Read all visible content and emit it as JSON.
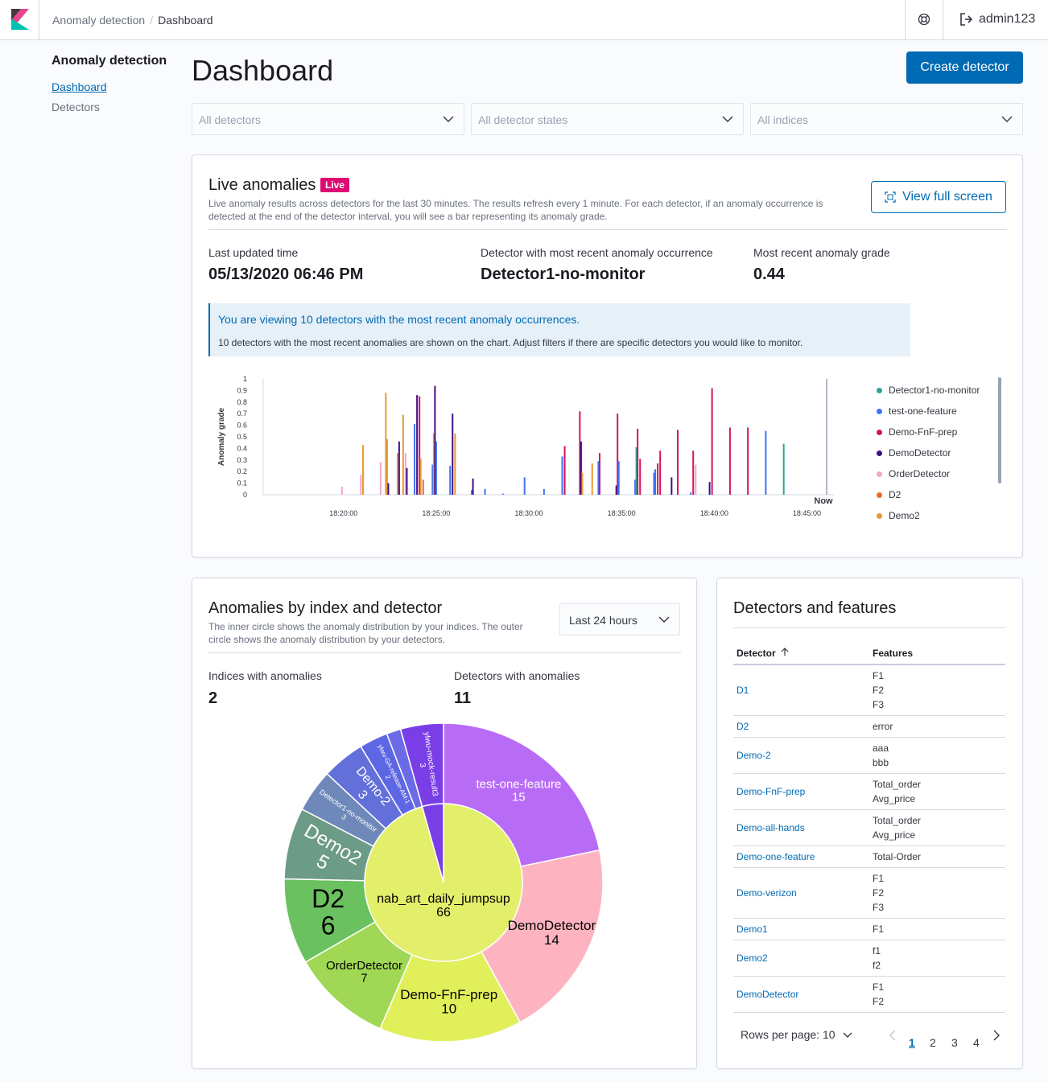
{
  "header": {
    "breadcrumb_app": "Anomaly detection",
    "breadcrumb_current": "Dashboard",
    "user": "admin123"
  },
  "sidebar": {
    "title": "Anomaly detection",
    "items": [
      {
        "label": "Dashboard",
        "active": true
      },
      {
        "label": "Detectors",
        "active": false
      }
    ]
  },
  "page": {
    "title": "Dashboard",
    "create_button": "Create detector"
  },
  "filters": {
    "detectors": "All detectors",
    "states": "All detector states",
    "indices": "All indices"
  },
  "live": {
    "title": "Live anomalies",
    "badge": "Live",
    "description": "Live anomaly results across detectors for the last 30 minutes. The results refresh every 1 minute. For each detector, if an anomaly occurrence is detected at the end of the detector interval, you will see a bar representing its anomaly grade.",
    "fullscreen_button": "View full screen",
    "last_updated_label": "Last updated time",
    "last_updated_value": "05/13/2020 06:46 PM",
    "recent_detector_label": "Detector with most recent anomaly occurrence",
    "recent_detector_value": "Detector1-no-monitor",
    "recent_grade_label": "Most recent anomaly grade",
    "recent_grade_value": "0.44",
    "callout_title": "You are viewing 10 detectors with the most recent anomaly occurrences.",
    "callout_text": "10 detectors with the most recent anomalies are shown on the chart. Adjust filters if there are specific detectors you would like to monitor.",
    "legend": [
      {
        "name": "Detector1-no-monitor",
        "color": "#2ea597"
      },
      {
        "name": "test-one-feature",
        "color": "#3f72f5"
      },
      {
        "name": "Demo-FnF-prep",
        "color": "#d4135f"
      },
      {
        "name": "DemoDetector",
        "color": "#3e0f88"
      },
      {
        "name": "OrderDetector",
        "color": "#f4a6c8"
      },
      {
        "name": "D2",
        "color": "#f06a24"
      },
      {
        "name": "Demo2",
        "color": "#e79a34"
      }
    ]
  },
  "chart_data": [
    {
      "type": "bar",
      "ylabel": "Anomaly grade",
      "ylim": [
        0,
        1
      ],
      "y_ticks": [
        "0",
        "0.1",
        "0.2",
        "0.3",
        "0.4",
        "0.5",
        "0.6",
        "0.7",
        "0.8",
        "0.9",
        "1"
      ],
      "x_ticks": [
        "18:20:00",
        "18:25:00",
        "18:30:00",
        "18:35:00",
        "18:40:00",
        "18:45:00"
      ],
      "now_label": "Now",
      "bars": [
        {
          "t": "18:19:55",
          "series": "OrderDetector",
          "value": 0.07
        },
        {
          "t": "18:20:56",
          "series": "OrderDetector",
          "value": 0.17
        },
        {
          "t": "18:21:03",
          "series": "Demo2",
          "value": 0.43
        },
        {
          "t": "18:22:00",
          "series": "OrderDetector",
          "value": 0.28
        },
        {
          "t": "18:22:17",
          "series": "Demo2",
          "value": 0.88
        },
        {
          "t": "18:22:21",
          "series": "Demo2",
          "value": 0.48
        },
        {
          "t": "18:22:25",
          "series": "DemoDetector",
          "value": 0.1
        },
        {
          "t": "18:22:55",
          "series": "Demo2",
          "value": 0.36
        },
        {
          "t": "18:23:00",
          "series": "DemoDetector",
          "value": 0.46
        },
        {
          "t": "18:23:13",
          "series": "Demo2",
          "value": 0.69
        },
        {
          "t": "18:23:21",
          "series": "OrderDetector",
          "value": 0.36
        },
        {
          "t": "18:23:25",
          "series": "DemoDetector",
          "value": 0.23
        },
        {
          "t": "18:23:50",
          "series": "test-one-feature",
          "value": 0.61
        },
        {
          "t": "18:23:58",
          "series": "DemoDetector",
          "value": 0.86
        },
        {
          "t": "18:24:06",
          "series": "Demo-FnF-prep",
          "value": 0.85
        },
        {
          "t": "18:24:10",
          "series": "Demo2",
          "value": 0.31
        },
        {
          "t": "18:24:18",
          "series": "D2",
          "value": 0.13
        },
        {
          "t": "18:24:48",
          "series": "test-one-feature",
          "value": 0.26
        },
        {
          "t": "18:24:52",
          "series": "Demo2",
          "value": 0.53
        },
        {
          "t": "18:24:56",
          "series": "DemoDetector",
          "value": 0.94
        },
        {
          "t": "18:25:00",
          "series": "test-one-feature",
          "value": 0.46
        },
        {
          "t": "18:25:45",
          "series": "test-one-feature",
          "value": 0.25
        },
        {
          "t": "18:25:53",
          "series": "DemoDetector",
          "value": 0.7
        },
        {
          "t": "18:26:01",
          "series": "Demo2",
          "value": 0.53
        },
        {
          "t": "18:26:55",
          "series": "test-one-feature",
          "value": 0.04
        },
        {
          "t": "18:26:59",
          "series": "DemoDetector",
          "value": 0.14
        },
        {
          "t": "18:27:38",
          "series": "test-one-feature",
          "value": 0.05
        },
        {
          "t": "18:28:36",
          "series": "test-one-feature",
          "value": 0.01
        },
        {
          "t": "18:29:46",
          "series": "test-one-feature",
          "value": 0.15
        },
        {
          "t": "18:30:49",
          "series": "test-one-feature",
          "value": 0.05
        },
        {
          "t": "18:31:48",
          "series": "test-one-feature",
          "value": 0.33
        },
        {
          "t": "18:31:56",
          "series": "Demo-FnF-prep",
          "value": 0.42
        },
        {
          "t": "18:32:45",
          "series": "Demo-FnF-prep",
          "value": 0.72
        },
        {
          "t": "18:32:49",
          "series": "DemoDetector",
          "value": 0.46
        },
        {
          "t": "18:32:53",
          "series": "Demo2",
          "value": 0.19
        },
        {
          "t": "18:33:25",
          "series": "Demo2",
          "value": 0.27
        },
        {
          "t": "18:33:45",
          "series": "test-one-feature",
          "value": 0.29
        },
        {
          "t": "18:33:49",
          "series": "Demo-FnF-prep",
          "value": 0.36
        },
        {
          "t": "18:34:43",
          "series": "DemoDetector",
          "value": 0.08
        },
        {
          "t": "18:34:47",
          "series": "Demo-FnF-prep",
          "value": 0.7
        },
        {
          "t": "18:34:51",
          "series": "test-one-feature",
          "value": 0.29
        },
        {
          "t": "18:35:44",
          "series": "test-one-feature",
          "value": 0.13
        },
        {
          "t": "18:35:48",
          "series": "Detector1-no-monitor",
          "value": 0.41
        },
        {
          "t": "18:35:52",
          "series": "Demo-FnF-prep",
          "value": 0.57
        },
        {
          "t": "18:36:00",
          "series": "Demo-FnF-prep",
          "value": 0.31
        },
        {
          "t": "18:36:45",
          "series": "test-one-feature",
          "value": 0.19
        },
        {
          "t": "18:36:49",
          "series": "test-one-feature",
          "value": 0.22
        },
        {
          "t": "18:36:57",
          "series": "Demo-FnF-prep",
          "value": 0.27
        },
        {
          "t": "18:37:05",
          "series": "Demo-FnF-prep",
          "value": 0.38
        },
        {
          "t": "18:37:42",
          "series": "DemoDetector",
          "value": 0.15
        },
        {
          "t": "18:38:02",
          "series": "Demo-FnF-prep",
          "value": 0.56
        },
        {
          "t": "18:38:44",
          "series": "test-one-feature",
          "value": 0.02
        },
        {
          "t": "18:38:52",
          "series": "Demo-FnF-prep",
          "value": 0.38
        },
        {
          "t": "18:39:00",
          "series": "OrderDetector",
          "value": 0.26
        },
        {
          "t": "18:39:45",
          "series": "DemoDetector",
          "value": 0.11
        },
        {
          "t": "18:39:53",
          "series": "Demo-FnF-prep",
          "value": 0.92
        },
        {
          "t": "18:40:51",
          "series": "Demo-FnF-prep",
          "value": 0.58
        },
        {
          "t": "18:41:49",
          "series": "Demo-FnF-prep",
          "value": 0.58
        },
        {
          "t": "18:42:47",
          "series": "test-one-feature",
          "value": 0.55
        },
        {
          "t": "18:43:45",
          "series": "Detector1-no-monitor",
          "value": 0.44
        }
      ]
    },
    {
      "type": "pie",
      "subtype": "sunburst",
      "inner": [
        {
          "label": "nab_art_daily_jumpsup",
          "value": 66,
          "color": "#e3ee6b"
        },
        {
          "label": "ylwu-mock-result3",
          "value": 3,
          "color": "#7a3ee6"
        }
      ],
      "outer": [
        {
          "label": "test-one-feature",
          "value": 15,
          "color": "#b86cf5"
        },
        {
          "label": "DemoDetector",
          "value": 14,
          "color": "#fdb4c0"
        },
        {
          "label": "Demo-FnF-prep",
          "value": 10,
          "color": "#e1ef5a"
        },
        {
          "label": "OrderDetector",
          "value": 7,
          "color": "#a0d855"
        },
        {
          "label": "D2",
          "value": 6,
          "color": "#6bc160"
        },
        {
          "label": "Demo2",
          "value": 5,
          "color": "#6c9b87"
        },
        {
          "label": "Detector1-no-monitor",
          "value": 3,
          "color": "#6e88b9"
        },
        {
          "label": "Demo-2",
          "value": 3,
          "color": "#6470da"
        },
        {
          "label": "ylwu-GA-release-AM-1",
          "value": 2,
          "color": "#5e67e3"
        },
        {
          "label": "",
          "value": 1,
          "color": "#6c6be7"
        },
        {
          "label": "ylwu-mock-result3",
          "value": 3,
          "color": "#7a3ee6"
        }
      ]
    }
  ],
  "anomalies_panel": {
    "title": "Anomalies by index and detector",
    "description": "The inner circle shows the anomaly distribution by your indices. The outer circle shows the anomaly distribution by your detectors.",
    "range": "Last 24 hours",
    "indices_label": "Indices with anomalies",
    "indices_value": "2",
    "detectors_label": "Detectors with anomalies",
    "detectors_value": "11"
  },
  "features_panel": {
    "title": "Detectors and features",
    "col_detector": "Detector",
    "col_features": "Features",
    "rows": [
      {
        "detector": "D1",
        "features": [
          "F1",
          "F2",
          "F3"
        ]
      },
      {
        "detector": "D2",
        "features": [
          "error"
        ]
      },
      {
        "detector": "Demo-2",
        "features": [
          "aaa",
          "bbb"
        ]
      },
      {
        "detector": "Demo-FnF-prep",
        "features": [
          "Total_order",
          "Avg_price"
        ]
      },
      {
        "detector": "Demo-all-hands",
        "features": [
          "Total_order",
          "Avg_price"
        ]
      },
      {
        "detector": "Demo-one-feature",
        "features": [
          "Total-Order"
        ]
      },
      {
        "detector": "Demo-verizon",
        "features": [
          "F1",
          "F2",
          "F3"
        ]
      },
      {
        "detector": "Demo1",
        "features": [
          "F1"
        ]
      },
      {
        "detector": "Demo2",
        "features": [
          "f1",
          "f2"
        ]
      },
      {
        "detector": "DemoDetector",
        "features": [
          "F1",
          "F2"
        ]
      }
    ],
    "rows_per_page": "Rows per page: 10",
    "pages": [
      "1",
      "2",
      "3",
      "4"
    ],
    "current_page": "1"
  }
}
